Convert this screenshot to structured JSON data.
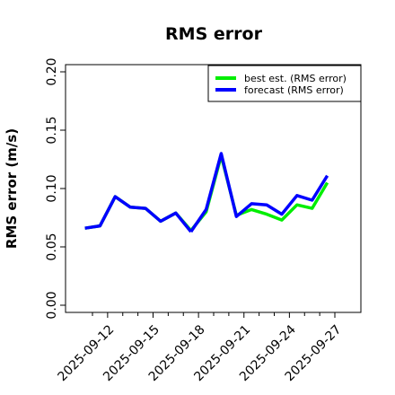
{
  "chart_data": {
    "type": "line",
    "title": "RMS error",
    "ylabel": "RMS error (m/s)",
    "xlabel": "",
    "ylim": [
      0,
      0.2
    ],
    "yticks": [
      "0.00",
      "0.05",
      "0.10",
      "0.15",
      "0.20"
    ],
    "xlim": [
      "2025-09-11",
      "2025-09-27"
    ],
    "x": [
      "2025-09-11T00",
      "2025-09-11T12",
      "2025-09-12T00",
      "2025-09-13T00",
      "2025-09-13T12",
      "2025-09-14T00",
      "2025-09-15T00",
      "2025-09-15T12",
      "2025-09-16T12",
      "2025-09-17T00",
      "2025-09-17T12",
      "2025-09-18T00",
      "2025-09-18T12",
      "2025-09-19T00",
      "2025-09-20T00",
      "2025-09-20T12",
      "2025-09-21T00",
      "2025-09-21T12",
      "2025-09-22T00",
      "2025-09-23T00",
      "2025-09-23T12",
      "2025-09-24T00",
      "2025-09-24T12",
      "2025-09-25T00",
      "2025-09-25T12",
      "2025-09-26T00",
      "2025-09-26T12",
      "2025-09-27T00"
    ],
    "x_tick_labels": [
      "2025-09-12",
      "2025-09-15",
      "2025-09-18",
      "2025-09-21",
      "2025-09-24",
      "2025-09-27"
    ],
    "highlight_tick": "2025-09-18",
    "highlight_color": "#2ca02c",
    "legend_position": "top-right",
    "grid": false,
    "segments": [
      {
        "x": [
          "2025-09-10T12",
          "2025-09-11T12",
          "2025-09-12T12",
          "2025-09-13T12",
          "2025-09-14T12",
          "2025-09-15T12",
          "2025-09-16T12",
          "2025-09-17T12"
        ],
        "best": [
          0.066,
          0.068,
          0.093,
          0.084,
          0.083,
          0.072,
          0.079,
          0.064
        ],
        "forecast": [
          0.066,
          0.068,
          0.093,
          0.084,
          0.083,
          0.072,
          0.079,
          0.063
        ]
      },
      {
        "x": [
          "2025-09-17T12",
          "2025-09-18T12",
          "2025-09-19T12",
          "2025-09-20T12",
          "2025-09-21T12",
          "2025-09-22T12",
          "2025-09-23T12",
          "2025-09-24T12",
          "2025-09-25T12",
          "2025-09-26T12"
        ],
        "best": [
          0.064,
          0.08,
          0.128,
          0.077,
          0.082,
          0.078,
          0.073,
          0.086,
          0.083,
          0.105
        ],
        "forecast": [
          0.063,
          0.082,
          0.13,
          0.076,
          0.087,
          0.086,
          0.078,
          0.094,
          0.09,
          0.111
        ]
      }
    ],
    "series": [
      {
        "name": "best est. (RMS error)",
        "color": "#00ee00"
      },
      {
        "name": "forecast (RMS error)",
        "color": "#0000ff"
      }
    ]
  }
}
